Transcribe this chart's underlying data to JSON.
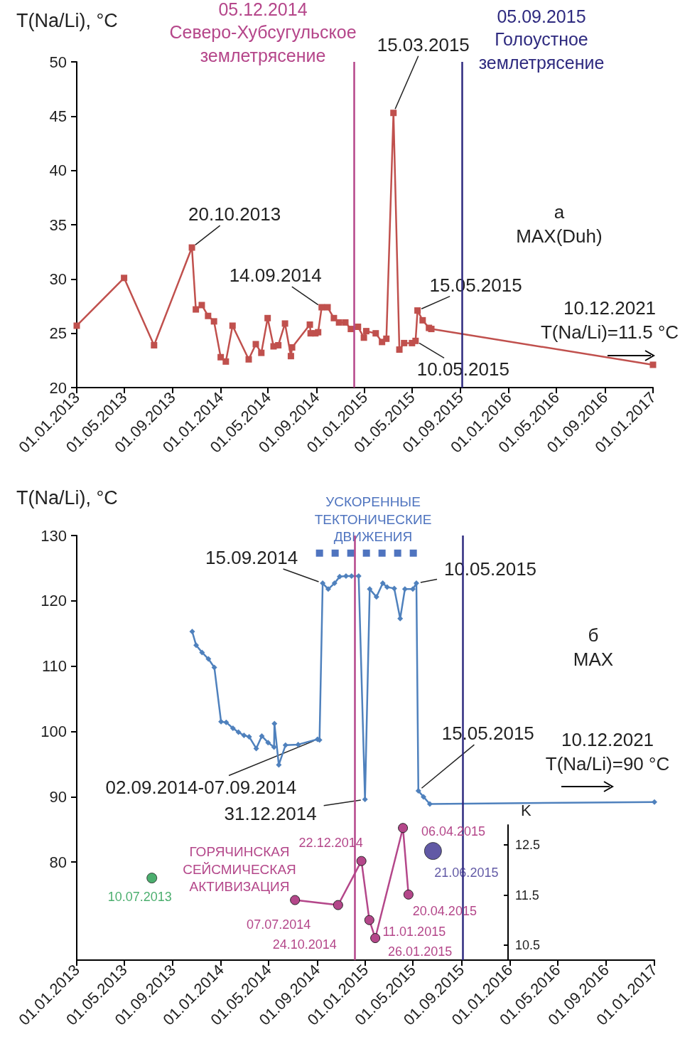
{
  "chart_data": [
    {
      "type": "line",
      "ylabel": "T(Na/Li), °C",
      "marker": "square",
      "grid": false,
      "legend": false,
      "xlim": [
        "2013-01-01",
        "2017-01-01"
      ],
      "xticks": [
        {
          "value": "2013-01-01",
          "label": "01.01.2013"
        },
        {
          "value": "2013-05-01",
          "label": "01.05.2013"
        },
        {
          "value": "2013-09-01",
          "label": "01.09.2013"
        },
        {
          "value": "2014-01-01",
          "label": "01.01.2014"
        },
        {
          "value": "2014-05-01",
          "label": "01.05.2014"
        },
        {
          "value": "2014-09-01",
          "label": "01.09.2014"
        },
        {
          "value": "2015-01-01",
          "label": "01.01.2015"
        },
        {
          "value": "2015-05-01",
          "label": "01.05.2015"
        },
        {
          "value": "2015-09-01",
          "label": "01.09.2015"
        },
        {
          "value": "2016-01-01",
          "label": "01.01.2016"
        },
        {
          "value": "2016-05-01",
          "label": "01.05.2016"
        },
        {
          "value": "2016-09-01",
          "label": "01.09.2016"
        },
        {
          "value": "2017-01-01",
          "label": "01.01.2017"
        }
      ],
      "ylim": [
        20,
        50
      ],
      "yticks": [
        20,
        25,
        30,
        35,
        40,
        45,
        50
      ],
      "x": [
        "2013-01-01",
        "2013-05-01",
        "2013-07-16",
        "2013-10-20",
        "2013-10-30",
        "2013-11-14",
        "2013-11-30",
        "2013-12-15",
        "2014-01-01",
        "2014-01-14",
        "2014-01-31",
        "2014-03-13",
        "2014-03-31",
        "2014-04-14",
        "2014-04-30",
        "2014-05-15",
        "2014-05-27",
        "2014-06-13",
        "2014-06-28",
        "2014-07-01",
        "2014-08-15",
        "2014-08-17",
        "2014-08-29",
        "2014-09-05",
        "2014-09-14",
        "2014-09-29",
        "2014-10-15",
        "2014-10-28",
        "2014-11-13",
        "2014-11-27",
        "2014-12-15",
        "2014-12-30",
        "2015-01-05",
        "2015-01-29",
        "2015-02-14",
        "2015-02-25",
        "2015-03-15",
        "2015-03-30",
        "2015-04-11",
        "2015-05-01",
        "2015-05-10",
        "2015-05-15",
        "2015-05-28",
        "2015-06-13",
        "2015-06-19",
        "2017-01-01"
      ],
      "series": [
        {
          "color": "#c0504d",
          "values": [
            25.7,
            30.1,
            23.9,
            32.9,
            27.2,
            27.6,
            26.6,
            26.1,
            22.8,
            22.4,
            25.7,
            22.6,
            24.0,
            23.2,
            26.4,
            23.8,
            23.9,
            25.9,
            22.9,
            23.7,
            25.8,
            25.0,
            25.0,
            25.1,
            27.4,
            27.4,
            26.4,
            26.0,
            26.0,
            25.4,
            25.6,
            24.6,
            25.2,
            25.0,
            24.2,
            24.5,
            45.3,
            23.5,
            24.1,
            24.1,
            24.3,
            27.1,
            26.2,
            25.5,
            25.4,
            22.1
          ]
        }
      ],
      "ref_lines": [
        {
          "axis": "x",
          "value": "2014-12-05",
          "label": "05.12.2014\nСеверо-Хубсугульское\nземлетрясение",
          "color": "#b5468a"
        },
        {
          "axis": "x",
          "value": "2015-09-05",
          "label": "05.09.2015\nГолоустное\nземлетрясение",
          "color": "#2e2a7f"
        }
      ],
      "annotations": [
        {
          "text": "20.10.2013",
          "x": "2013-10-20",
          "y": 32.9
        },
        {
          "text": "14.09.2014",
          "x": "2014-09-14",
          "y": 27.4
        },
        {
          "text": "15.03.2015",
          "x": "2015-03-15",
          "y": 45.3
        },
        {
          "text": "15.05.2015",
          "x": "2015-05-15",
          "y": 27.1
        },
        {
          "text": "10.05.2015",
          "x": "2015-05-10",
          "y": 24.3
        },
        "10.12.2021\nT(Na/Li)=11.5 °C",
        "а\nMAX(Duh)"
      ]
    },
    {
      "type": "line",
      "ylabel": "T(Na/Li), °C",
      "y2label": "K",
      "grid": false,
      "legend": false,
      "xlim": [
        "2013-01-01",
        "2017-01-01"
      ],
      "xticks": [
        {
          "value": "2013-01-01",
          "label": "01.01.2013"
        },
        {
          "value": "2013-05-01",
          "label": "01.05.2013"
        },
        {
          "value": "2013-09-01",
          "label": "01.09.2013"
        },
        {
          "value": "2014-01-01",
          "label": "01.01.2014"
        },
        {
          "value": "2014-05-01",
          "label": "01.05.2014"
        },
        {
          "value": "2014-09-01",
          "label": "01.09.2014"
        },
        {
          "value": "2015-01-01",
          "label": "01.01.2015"
        },
        {
          "value": "2015-05-01",
          "label": "01.05.2015"
        },
        {
          "value": "2015-09-01",
          "label": "01.09.2015"
        },
        {
          "value": "2016-01-01",
          "label": "01.01.2016"
        },
        {
          "value": "2016-05-01",
          "label": "01.05.2016"
        },
        {
          "value": "2016-09-01",
          "label": "01.09.2016"
        },
        {
          "value": "2017-01-01",
          "label": "01.01.2017"
        }
      ],
      "ylim": [
        65,
        130
      ],
      "yticks": [
        80,
        90,
        100,
        110,
        120,
        130
      ],
      "y2lim": [
        10.2,
        12.9
      ],
      "y2ticks": [
        10.5,
        11.5,
        12.5
      ],
      "series": [
        {
          "color": "#4f81bd",
          "marker": "diamond",
          "x": [
            "2013-10-20",
            "2013-10-30",
            "2013-11-14",
            "2013-11-30",
            "2013-12-15",
            "2014-01-01",
            "2014-01-14",
            "2014-01-31",
            "2014-02-14",
            "2014-02-28",
            "2014-03-13",
            "2014-03-31",
            "2014-04-14",
            "2014-04-30",
            "2014-05-15",
            "2014-05-16",
            "2014-05-27",
            "2014-06-13",
            "2014-07-15",
            "2014-09-02",
            "2014-09-07",
            "2014-09-15",
            "2014-09-29",
            "2014-10-15",
            "2014-10-28",
            "2014-11-13",
            "2014-11-27",
            "2014-12-15",
            "2014-12-31",
            "2015-01-12",
            "2015-01-29",
            "2015-02-14",
            "2015-02-25",
            "2015-03-15",
            "2015-03-30",
            "2015-04-11",
            "2015-05-01",
            "2015-05-10",
            "2015-05-15",
            "2015-05-28",
            "2015-06-13",
            "2017-01-01"
          ],
          "values": [
            115.3,
            113.2,
            112.1,
            111.1,
            109.8,
            101.5,
            101.4,
            100.5,
            99.9,
            99.4,
            99.2,
            97.4,
            99.3,
            98.3,
            97.6,
            101.2,
            94.9,
            97.9,
            98.0,
            98.8,
            98.7,
            122.7,
            121.8,
            122.7,
            123.7,
            123.8,
            123.8,
            123.8,
            89.6,
            121.8,
            120.6,
            122.7,
            122.1,
            121.9,
            117.3,
            121.8,
            121.8,
            122.7,
            90.9,
            90.0,
            88.9,
            89.2
          ]
        },
        {
          "type": "scatter",
          "axis": "y2",
          "color": "#1e9a4a",
          "marker": "circle",
          "x": [
            "2013-07-10"
          ],
          "values": [
            11.84
          ],
          "value_labels": [
            "10.07.2013"
          ]
        },
        {
          "type": "line",
          "axis": "y2",
          "name": "ГОРЯЧИНСКАЯ\nСЕЙСМИЧЕСКАЯ\nАКТИВИЗАЦИЯ",
          "color": "#b4478a",
          "marker": "circle",
          "x": [
            "2014-07-07",
            "2014-10-24",
            "2014-12-22",
            "2015-01-11",
            "2015-01-26",
            "2015-04-06",
            "2015-04-20"
          ],
          "values": [
            11.4,
            11.3,
            12.18,
            11.0,
            10.64,
            12.84,
            11.51
          ],
          "value_labels": [
            "07.07.2014",
            "24.10.2014",
            "22.12.2014",
            "11.01.2015",
            "26.01.2015",
            "06.04.2015",
            "20.04.2015"
          ]
        },
        {
          "type": "scatter",
          "axis": "y2",
          "color": "#3a2f8f",
          "marker": "circle",
          "x": [
            "2015-06-21"
          ],
          "values": [
            12.38
          ],
          "value_labels": [
            "21.06.2015"
          ]
        },
        {
          "type": "line",
          "name": "УСКОРЕННЫЕ\nТЕКТОНИЧЕСКИЕ\nДВИЖЕНИЯ",
          "color": "#4f74bf",
          "marker": "none",
          "line_style": "dashed",
          "x": [
            "2014-08-29",
            "2015-05-22"
          ],
          "values": [
            127.3,
            127.3
          ]
        }
      ],
      "ref_lines": [
        {
          "axis": "x",
          "value": "2014-12-05",
          "color": "#b5468a"
        },
        {
          "axis": "x",
          "value": "2015-09-05",
          "color": "#2e2a7f"
        }
      ],
      "annotations": [
        {
          "text": "15.09.2014",
          "x": "2014-09-15",
          "y": 122.7
        },
        {
          "text": "10.05.2015",
          "x": "2015-05-10",
          "y": 122.7
        },
        "б\nMAX",
        {
          "text": "15.05.2015",
          "x": "2015-05-15",
          "y": 90.9
        },
        "10.12.2021\nT(Na/Li)=90 °C",
        {
          "text": "02.09.2014-07.09.2014",
          "x": "2014-09-02",
          "y": 98.8
        },
        {
          "text": "31.12.2014",
          "x": "2014-12-31",
          "y": 89.6
        }
      ]
    }
  ]
}
